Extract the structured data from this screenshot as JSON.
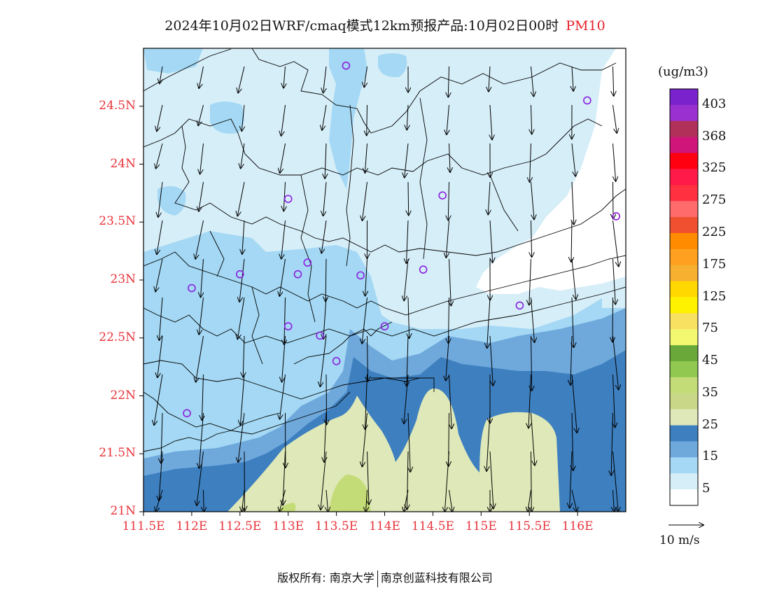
{
  "title": {
    "text": "2024年10月02日WRF/cmaq模式12km预报产品:10月02日00时",
    "pollutant": "PM10"
  },
  "legend": {
    "unit": "(ug/m3)",
    "labels": [
      "403",
      "368",
      "325",
      "275",
      "225",
      "175",
      "125",
      "75",
      "45",
      "35",
      "25",
      "15",
      "5"
    ],
    "colors": [
      "#7a22cc",
      "#9a30d0",
      "#b0305a",
      "#d0157a",
      "#ff0010",
      "#ff1a4a",
      "#ff3040",
      "#ff6a6a",
      "#f05030",
      "#ff8c00",
      "#ffa020",
      "#f8b030",
      "#ffd800",
      "#fff200",
      "#f8e060",
      "#f4f870",
      "#6aa83a",
      "#90c850",
      "#c4dc78",
      "#c8d888",
      "#dfe8b8",
      "#3d7fbf",
      "#6fa9dc",
      "#a4d8f4",
      "#d6eef8",
      "#ffffff"
    ]
  },
  "wind_scale": {
    "label": "10 m/s"
  },
  "footer": {
    "left": "版权所有: 南京大学",
    "right": "南京创蓝科技有限公司"
  },
  "colors": {
    "axis_label": "#e8333a",
    "station": "#8a20e0"
  },
  "chart_data": {
    "type": "heatmap",
    "variable": "PM10",
    "unit": "ug/m3",
    "xlim": [
      111.5,
      116.5
    ],
    "ylim": [
      21.0,
      25.0
    ],
    "x_ticks": [
      "111.5E",
      "112E",
      "112.5E",
      "113E",
      "113.5E",
      "114E",
      "114.5E",
      "115E",
      "115.5E",
      "116E"
    ],
    "x_tick_values": [
      111.5,
      112,
      112.5,
      113,
      113.5,
      114,
      114.5,
      115,
      115.5,
      116
    ],
    "y_ticks": [
      "21N",
      "21.5N",
      "22N",
      "22.5N",
      "23N",
      "23.5N",
      "24N",
      "24.5N"
    ],
    "y_tick_values": [
      21,
      21.5,
      22,
      22.5,
      23,
      23.5,
      24,
      24.5
    ],
    "grid": false,
    "legend_position": "right",
    "levels": [
      5,
      15,
      25,
      35,
      45,
      75,
      125,
      175,
      225,
      275,
      325,
      368,
      403
    ],
    "stations": [
      {
        "lon": 113.6,
        "lat": 24.85
      },
      {
        "lon": 116.1,
        "lat": 24.55
      },
      {
        "lon": 113.0,
        "lat": 23.7
      },
      {
        "lon": 114.6,
        "lat": 23.73
      },
      {
        "lon": 116.4,
        "lat": 23.55
      },
      {
        "lon": 113.2,
        "lat": 23.15
      },
      {
        "lon": 112.5,
        "lat": 23.05
      },
      {
        "lon": 113.1,
        "lat": 23.05
      },
      {
        "lon": 113.75,
        "lat": 23.04
      },
      {
        "lon": 114.4,
        "lat": 23.09
      },
      {
        "lon": 112.0,
        "lat": 22.93
      },
      {
        "lon": 115.4,
        "lat": 22.78
      },
      {
        "lon": 113.0,
        "lat": 22.6
      },
      {
        "lon": 114.0,
        "lat": 22.6
      },
      {
        "lon": 113.33,
        "lat": 22.52
      },
      {
        "lon": 113.5,
        "lat": 22.3
      },
      {
        "lon": 111.95,
        "lat": 21.85
      }
    ]
  }
}
